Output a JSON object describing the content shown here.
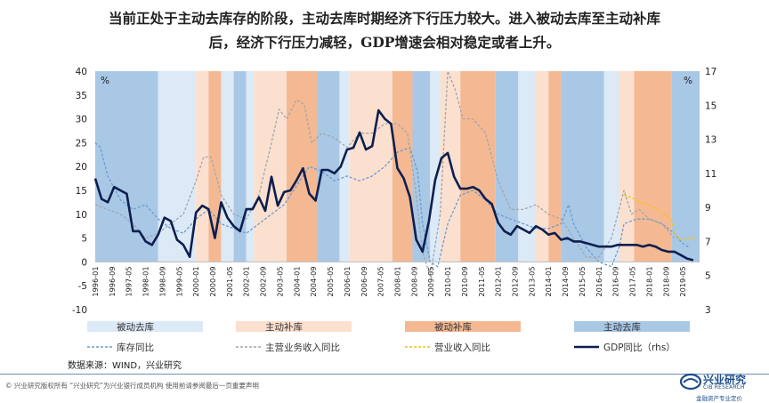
{
  "headline": {
    "line1": "当前正处于主动去库存的阶段，主动去库时期经济下行压力较大。进入被动去库至主动补库",
    "line2": "后，经济下行压力减轻，GDP增速会相对稳定或者上升。"
  },
  "source": "数据来源：WIND，兴业研究",
  "footer": "© 兴业研究版权所有 “兴业研究”为兴业银行成员机构 使用前请参阅最后一页重要声明",
  "logo": {
    "cn": "兴业研究",
    "en": "CIB RESEARCH",
    "tagline": "金融资产专业定价"
  },
  "chart_data": {
    "type": "line",
    "left_axis": {
      "unit": "%",
      "ylim": [
        -10,
        40
      ],
      "ticks": [
        "-10",
        "-5",
        "0",
        "5",
        "10",
        "15",
        "20",
        "25",
        "30",
        "35",
        "40"
      ]
    },
    "right_axis": {
      "unit": "%",
      "ylim": [
        3,
        17
      ],
      "ticks": [
        "3",
        "5",
        "7",
        "9",
        "11",
        "13",
        "15",
        "17"
      ]
    },
    "x_range": [
      1996.0,
      2020.0
    ],
    "x_ticks": [
      "1996-01",
      "1996-09",
      "1997-05",
      "1998-01",
      "1998-09",
      "1999-05",
      "2000-01",
      "2000-09",
      "2001-05",
      "2002-01",
      "2002-09",
      "2003-05",
      "2004-01",
      "2004-09",
      "2005-05",
      "2006-01",
      "2006-09",
      "2007-05",
      "2008-01",
      "2008-09",
      "2009-05",
      "2010-01",
      "2010-09",
      "2011-05",
      "2012-01",
      "2012-09",
      "2013-05",
      "2014-01",
      "2014-09",
      "2015-05",
      "2016-01",
      "2016-09",
      "2017-05",
      "2018-01",
      "2018-09",
      "2019-05"
    ],
    "phases": [
      {
        "name": "被动去库",
        "color": "#dce9f6"
      },
      {
        "name": "主动补库",
        "color": "#fbe0cf"
      },
      {
        "name": "被动补库",
        "color": "#f4b993"
      },
      {
        "name": "主动去库",
        "color": "#a9c8e6"
      }
    ],
    "phase_periods": [
      {
        "start": 1996.0,
        "end": 1998.5,
        "phase": 3
      },
      {
        "start": 1998.5,
        "end": 2000.0,
        "phase": 0
      },
      {
        "start": 2000.0,
        "end": 2000.5,
        "phase": 1
      },
      {
        "start": 2000.5,
        "end": 2001.0,
        "phase": 2
      },
      {
        "start": 2001.0,
        "end": 2001.5,
        "phase": 0
      },
      {
        "start": 2001.5,
        "end": 2002.0,
        "phase": 3
      },
      {
        "start": 2002.0,
        "end": 2002.3,
        "phase": 0
      },
      {
        "start": 2002.3,
        "end": 2003.6,
        "phase": 1
      },
      {
        "start": 2003.6,
        "end": 2004.8,
        "phase": 2
      },
      {
        "start": 2004.8,
        "end": 2005.7,
        "phase": 3
      },
      {
        "start": 2005.7,
        "end": 2006.1,
        "phase": 0
      },
      {
        "start": 2006.1,
        "end": 2007.8,
        "phase": 1
      },
      {
        "start": 2007.8,
        "end": 2008.6,
        "phase": 2
      },
      {
        "start": 2008.6,
        "end": 2009.3,
        "phase": 3
      },
      {
        "start": 2009.3,
        "end": 2009.7,
        "phase": 0
      },
      {
        "start": 2009.7,
        "end": 2010.5,
        "phase": 1
      },
      {
        "start": 2010.5,
        "end": 2011.9,
        "phase": 2
      },
      {
        "start": 2011.9,
        "end": 2012.8,
        "phase": 3
      },
      {
        "start": 2012.8,
        "end": 2013.5,
        "phase": 0
      },
      {
        "start": 2013.5,
        "end": 2014.0,
        "phase": 1
      },
      {
        "start": 2014.0,
        "end": 2014.5,
        "phase": 2
      },
      {
        "start": 2014.5,
        "end": 2016.2,
        "phase": 3
      },
      {
        "start": 2016.2,
        "end": 2016.8,
        "phase": 0
      },
      {
        "start": 2016.8,
        "end": 2017.4,
        "phase": 1
      },
      {
        "start": 2017.4,
        "end": 2018.9,
        "phase": 2
      },
      {
        "start": 2018.9,
        "end": 2020.0,
        "phase": 3
      }
    ],
    "series": [
      {
        "name": "库存同比",
        "axis": "left",
        "color": "#6a9bd1",
        "style": "dashed",
        "x": [
          1996.0,
          1996.2,
          1996.5,
          1997.0,
          1997.5,
          1998.0,
          1998.5,
          1999.0,
          1999.5,
          2000.0,
          2000.5,
          2001.0,
          2001.5,
          2002.0,
          2002.5,
          2003.0,
          2003.5,
          2004.0,
          2004.5,
          2005.0,
          2005.5,
          2006.0,
          2006.5,
          2007.0,
          2007.5,
          2008.0,
          2008.5,
          2008.8,
          2009.0,
          2009.3,
          2009.6,
          2010.0,
          2010.5,
          2011.0,
          2011.5,
          2012.0,
          2012.5,
          2013.0,
          2013.5,
          2014.0,
          2014.5,
          2014.8,
          2015.0,
          2015.5,
          2016.0,
          2016.5,
          2016.8,
          2017.0,
          2017.5,
          2018.0,
          2018.5,
          2019.0,
          2019.3,
          2019.6
        ],
        "values": [
          25,
          24,
          18,
          13,
          11,
          12,
          9,
          7,
          6,
          9,
          11,
          8,
          7,
          6,
          8,
          10,
          12,
          16,
          20,
          19,
          17,
          18,
          17,
          18,
          20,
          23,
          24,
          19,
          8,
          0,
          -1,
          8,
          14,
          15,
          13,
          10,
          9,
          8,
          7,
          7,
          8,
          12,
          8,
          3,
          0,
          -1,
          3,
          8,
          9,
          9,
          8,
          6,
          4,
          3
        ]
      },
      {
        "name": "主营业务收入同比",
        "axis": "left",
        "color": "#a0a6ad",
        "style": "dashed",
        "x": [
          1996.0,
          1996.5,
          1997.0,
          1997.5,
          1998.0,
          1998.5,
          1999.0,
          1999.5,
          2000.0,
          2000.3,
          2000.6,
          2001.0,
          2001.5,
          2002.0,
          2002.5,
          2003.0,
          2003.3,
          2003.6,
          2004.0,
          2004.3,
          2004.6,
          2005.0,
          2005.5,
          2006.0,
          2006.5,
          2007.0,
          2007.5,
          2008.0,
          2008.4,
          2008.7,
          2009.0,
          2009.3,
          2009.7,
          2010.0,
          2010.3,
          2010.6,
          2011.0,
          2011.5,
          2012.0,
          2012.5,
          2013.0,
          2013.5,
          2014.0,
          2014.5,
          2015.0,
          2015.5,
          2016.0,
          2016.5,
          2017.0,
          2017.3,
          2017.6,
          2018.0,
          2018.5,
          2019.0
        ],
        "values": [
          12,
          11,
          10,
          8,
          5,
          6,
          8,
          10,
          17,
          22,
          22,
          14,
          10,
          9,
          14,
          25,
          32,
          30,
          34,
          33,
          25,
          27,
          26,
          24,
          27,
          27,
          29,
          29,
          27,
          16,
          2,
          -3,
          10,
          40,
          36,
          30,
          30,
          27,
          17,
          11,
          11,
          12,
          10,
          9,
          5,
          1,
          1,
          5,
          15,
          10,
          11,
          9,
          8,
          5
        ]
      },
      {
        "name": "营业收入同比",
        "axis": "left",
        "color": "#f0c419",
        "style": "dashed",
        "x": [
          2017.0,
          2017.3,
          2017.6,
          2018.0,
          2018.3,
          2018.6,
          2018.9,
          2019.0,
          2019.3,
          2019.6,
          2019.9
        ],
        "values": [
          14,
          13.5,
          12.5,
          12,
          11,
          10,
          8.5,
          6,
          4.5,
          5,
          5
        ]
      },
      {
        "name": "GDP同比（rhs）",
        "axis": "right",
        "color": "#0d1f4f",
        "style": "solid",
        "x": [
          1996.0,
          1996.25,
          1996.5,
          1996.75,
          1997.0,
          1997.25,
          1997.5,
          1997.75,
          1998.0,
          1998.25,
          1998.5,
          1998.75,
          1999.0,
          1999.25,
          1999.5,
          1999.75,
          2000.0,
          2000.25,
          2000.5,
          2000.75,
          2001.0,
          2001.25,
          2001.5,
          2001.75,
          2002.0,
          2002.25,
          2002.5,
          2002.75,
          2003.0,
          2003.25,
          2003.5,
          2003.75,
          2004.0,
          2004.25,
          2004.5,
          2004.75,
          2005.0,
          2005.25,
          2005.5,
          2005.75,
          2006.0,
          2006.25,
          2006.5,
          2006.75,
          2007.0,
          2007.25,
          2007.5,
          2007.75,
          2008.0,
          2008.25,
          2008.5,
          2008.75,
          2009.0,
          2009.25,
          2009.5,
          2009.75,
          2010.0,
          2010.25,
          2010.5,
          2010.75,
          2011.0,
          2011.25,
          2011.5,
          2011.75,
          2012.0,
          2012.25,
          2012.5,
          2012.75,
          2013.0,
          2013.25,
          2013.5,
          2013.75,
          2014.0,
          2014.25,
          2014.5,
          2014.75,
          2015.0,
          2015.25,
          2015.5,
          2015.75,
          2016.0,
          2016.25,
          2016.5,
          2016.75,
          2017.0,
          2017.25,
          2017.5,
          2017.75,
          2018.0,
          2018.25,
          2018.5,
          2018.75,
          2019.0,
          2019.25,
          2019.5,
          2019.75
        ],
        "values": [
          10.7,
          9.5,
          9.3,
          10.2,
          10.0,
          9.8,
          7.6,
          7.6,
          7.0,
          6.8,
          7.4,
          8.4,
          8.2,
          7.1,
          6.8,
          6.1,
          8.7,
          9.1,
          8.9,
          7.2,
          9.3,
          8.4,
          7.9,
          7.6,
          8.9,
          8.9,
          9.6,
          8.8,
          10.8,
          9.1,
          9.9,
          10.0,
          10.6,
          11.3,
          9.8,
          9.4,
          11.2,
          11.2,
          11.0,
          11.4,
          12.4,
          12.5,
          13.4,
          12.4,
          12.6,
          14.7,
          14.2,
          13.9,
          11.3,
          10.7,
          9.6,
          7.1,
          6.4,
          8.2,
          10.6,
          11.9,
          12.2,
          10.8,
          10.1,
          10.1,
          10.2,
          10.0,
          9.5,
          9.2,
          8.1,
          7.6,
          7.4,
          7.9,
          7.7,
          7.5,
          7.9,
          7.7,
          7.4,
          7.5,
          7.1,
          7.2,
          7.0,
          7.0,
          6.9,
          6.8,
          6.7,
          6.7,
          6.7,
          6.8,
          6.8,
          6.8,
          6.8,
          6.7,
          6.8,
          6.7,
          6.5,
          6.4,
          6.4,
          6.2,
          6.0,
          5.9
        ]
      }
    ],
    "legend_placement": "bottom",
    "grid": false
  }
}
